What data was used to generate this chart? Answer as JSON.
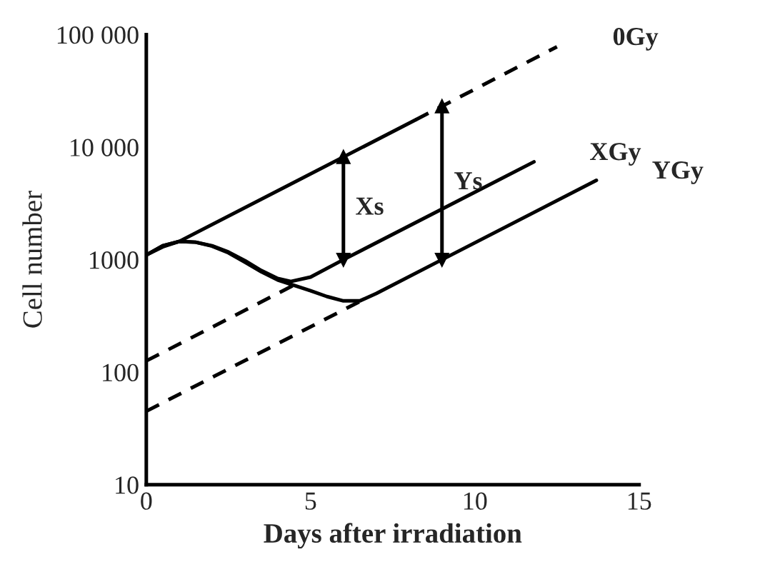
{
  "chart_data": {
    "type": "line",
    "xlabel": "Days after irradiation",
    "ylabel": "Cell number",
    "log": "y",
    "xlim": [
      0,
      15
    ],
    "ylim": [
      10,
      100000
    ],
    "xticks": [
      0,
      5,
      10,
      15
    ],
    "yticks": [
      {
        "value": 10,
        "label": "10"
      },
      {
        "value": 100,
        "label": "100"
      },
      {
        "value": 1000,
        "label": "1000"
      },
      {
        "value": 10000,
        "label": "10 000"
      },
      {
        "value": 100000,
        "label": "100 000"
      }
    ],
    "grid": false,
    "legend": false,
    "color": "#000000",
    "series": [
      {
        "x": [
          0,
          0.5,
          1,
          8.2
        ],
        "values": [
          1100,
          1300,
          1450,
          17500
        ],
        "line_style": "solid"
      },
      {
        "name": "0Gy",
        "x": [
          8.2,
          12.5
        ],
        "values": [
          17500,
          78000
        ],
        "line_style": "dashed"
      },
      {
        "name": "XGy",
        "x": [
          0,
          0.5,
          1,
          1.5,
          2,
          2.5,
          3,
          3.5,
          4,
          4.4,
          5,
          6,
          11.8
        ],
        "values": [
          1100,
          1330,
          1450,
          1430,
          1330,
          1170,
          980,
          800,
          680,
          640,
          700,
          1000,
          7400
        ],
        "line_style": "solid"
      },
      {
        "x": [
          0,
          4.5
        ],
        "values": [
          126,
          595
        ],
        "line_style": "dashed"
      },
      {
        "name": "YGy",
        "x": [
          0,
          0.5,
          1,
          1.5,
          2,
          2.5,
          3,
          3.5,
          4,
          4.5,
          5,
          5.5,
          6,
          6.5,
          7,
          9,
          13.7
        ],
        "values": [
          1100,
          1330,
          1450,
          1430,
          1320,
          1150,
          950,
          780,
          660,
          590,
          530,
          470,
          430,
          430,
          500,
          1000,
          5070
        ],
        "line_style": "solid"
      },
      {
        "x": [
          0,
          6.5
        ],
        "values": [
          45,
          425
        ],
        "line_style": "dashed"
      },
      {
        "x": [
          6,
          6
        ],
        "values": [
          1000,
          8150
        ],
        "line_style": "solid",
        "marker": "triangle"
      },
      {
        "x": [
          9,
          9
        ],
        "values": [
          1000,
          23000
        ],
        "line_style": "solid",
        "marker": "triangle"
      }
    ],
    "annotations": [
      "Xs",
      "Ys"
    ]
  }
}
